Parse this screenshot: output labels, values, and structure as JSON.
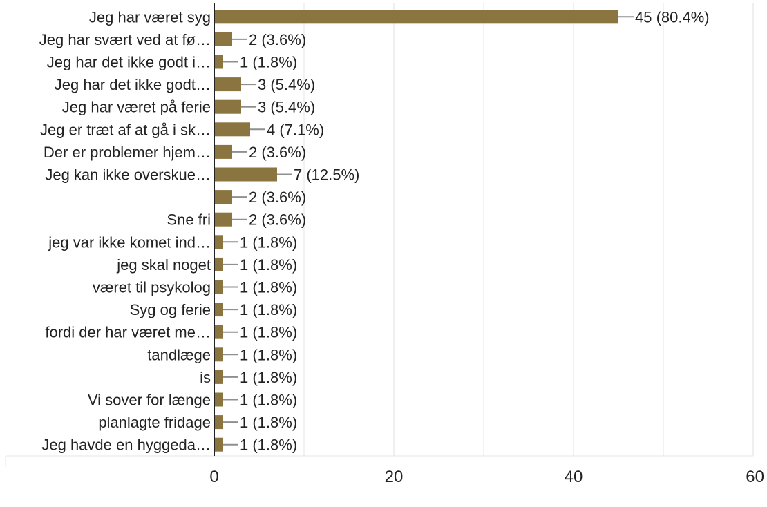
{
  "chart_data": {
    "type": "bar",
    "orientation": "horizontal",
    "categories": [
      "Jeg har været syg",
      "Jeg har svært ved at fø…",
      "Jeg har det ikke godt i…",
      "Jeg har det ikke godt…",
      "Jeg har været på ferie",
      "Jeg er træt af at gå i sk…",
      "Der er problemer hjem…",
      "Jeg kan ikke overskue…",
      "",
      "Sne fri",
      "jeg var ikke komet ind…",
      "jeg skal noget",
      "været til psykolog",
      "Syg og ferie",
      "fordi der har været me…",
      "tandlæge",
      "is",
      "Vi sover for længe",
      "planlagte fridage",
      "Jeg havde en hyggeda…"
    ],
    "values": [
      45,
      2,
      1,
      3,
      3,
      4,
      2,
      7,
      2,
      2,
      1,
      1,
      1,
      1,
      1,
      1,
      1,
      1,
      1,
      1
    ],
    "value_labels": [
      "45 (80.4%)",
      "2 (3.6%)",
      "1 (1.8%)",
      "3 (5.4%)",
      "3 (5.4%)",
      "4 (7.1%)",
      "2 (3.6%)",
      "7 (12.5%)",
      "2 (3.6%)",
      "2 (3.6%)",
      "1 (1.8%)",
      "1 (1.8%)",
      "1 (1.8%)",
      "1 (1.8%)",
      "1 (1.8%)",
      "1 (1.8%)",
      "1 (1.8%)",
      "1 (1.8%)",
      "1 (1.8%)",
      "1 (1.8%)"
    ],
    "x_ticks": [
      0,
      20,
      40,
      60
    ],
    "xlim": [
      0,
      60
    ],
    "grid": true,
    "title": "",
    "xlabel": "",
    "ylabel": "",
    "colors": {
      "bar": "#8a7440",
      "leader": "#8f8f8f",
      "grid": "#e6e6e6",
      "axis": "#222222",
      "text": "#222222"
    }
  }
}
